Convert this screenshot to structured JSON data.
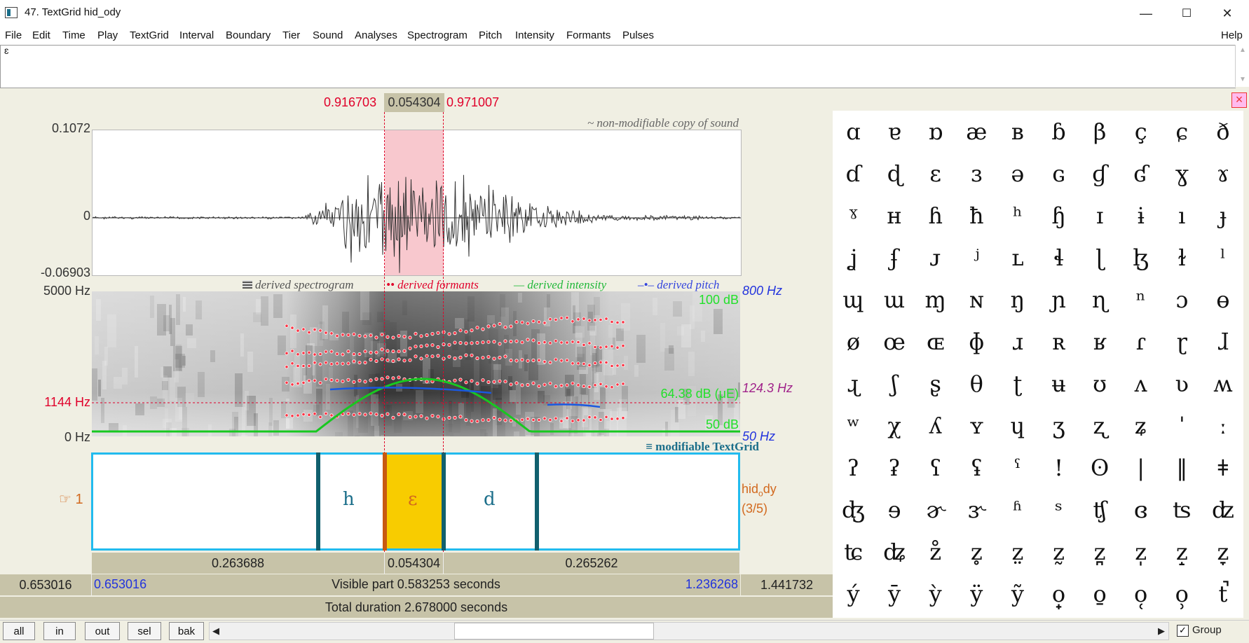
{
  "window": {
    "title": "47. TextGrid hid_ody",
    "minimize": "—",
    "maximize": "☐",
    "close": "✕"
  },
  "menu": [
    "File",
    "Edit",
    "Time",
    "Play",
    "TextGrid",
    "Interval",
    "Boundary",
    "Tier",
    "Sound",
    "Analyses",
    "Spectrogram",
    "Pitch",
    "Intensity",
    "Formants",
    "Pulses"
  ],
  "menu_help": "Help",
  "text_field": {
    "value": "ɛ"
  },
  "selection": {
    "start": "0.916703",
    "duration": "0.054304",
    "end": "0.971007"
  },
  "wave": {
    "ymax": "0.1072",
    "yzero": "0",
    "ymin": "-0.06903",
    "caption": "~ non-modifiable copy of sound"
  },
  "legend": {
    "spectrogram": "derived spectrogram",
    "formants": "derived formants",
    "intensity": "derived intensity",
    "pitch": "derived pitch"
  },
  "spectrogram": {
    "top_hz": "5000 Hz",
    "cursor_hz": "1144 Hz",
    "zero_hz": "0 Hz",
    "pitch_top": "800 Hz",
    "pitch_cursor": "124.3 Hz",
    "pitch_bottom": "50 Hz",
    "db_top": "100 dB",
    "db_cursor": "64.38 dB (μE)",
    "db_bottom": "50 dB"
  },
  "textgrid": {
    "caption": "modifiable TextGrid",
    "tier_number": "1",
    "tier_name": "hid",
    "tier_name_sub": "o",
    "tier_name_rest": "dy",
    "tier_count": "(3/5)",
    "intervals": [
      {
        "label": ""
      },
      {
        "label": "h"
      },
      {
        "label": "ɛ"
      },
      {
        "label": "d"
      },
      {
        "label": ""
      }
    ],
    "durations": [
      "0.263688",
      "0.054304",
      "0.265262"
    ]
  },
  "time": {
    "window_start": "0.653016",
    "visible_start": "0.653016",
    "visible_text": "Visible part 0.583253 seconds",
    "visible_end": "1.236268",
    "window_end": "1.441732",
    "total": "Total duration 2.678000 seconds"
  },
  "buttons": {
    "all": "all",
    "in": "in",
    "out": "out",
    "sel": "sel",
    "bak": "bak",
    "group": "Group"
  },
  "ipa_symbols": [
    "ɑ",
    "ɐ",
    "ɒ",
    "æ",
    "ʙ",
    "ɓ",
    "β",
    "ç",
    "ɕ",
    "ð",
    "ɗ",
    "ɖ",
    "ɛ",
    "ɜ",
    "ə",
    "ɢ",
    "ɠ",
    "ʛ",
    "ɣ",
    "ɤ",
    "ˠ",
    "ʜ",
    "ɦ",
    "ħ",
    "ʰ",
    "ɧ",
    "ɪ",
    "ɨ",
    "ı",
    "ɟ",
    "ʝ",
    "ʄ",
    "ᴊ",
    "ʲ",
    "ʟ",
    "ɬ",
    "ɭ",
    "ɮ",
    "ɫ",
    "ˡ",
    "ɰ",
    "ɯ",
    "ɱ",
    "ɴ",
    "ŋ",
    "ɲ",
    "ɳ",
    "ⁿ",
    "ɔ",
    "ɵ",
    "ø",
    "œ",
    "ɶ",
    "ɸ",
    "ɹ",
    "ʀ",
    "ʁ",
    "ɾ",
    "ɽ",
    "ɺ",
    "ɻ",
    "ʃ",
    "ʂ",
    "θ",
    "ʈ",
    "ʉ",
    "ʊ",
    "ʌ",
    "ʋ",
    "ʍ",
    "ʷ",
    "χ",
    "ʎ",
    "ʏ",
    "ɥ",
    "ʒ",
    "ʐ",
    "ʑ",
    "ˈ",
    "ː",
    "ʔ",
    "ʡ",
    "ʕ",
    "ʢ",
    "ˤ",
    "!",
    "ʘ",
    "|",
    "‖",
    "ǂ",
    "ʤ",
    "ɘ",
    "ɚ",
    "ɝ",
    "ʱ",
    "ˢ",
    "ʧ",
    "ɞ",
    "ʦ",
    "ʣ",
    "ʨ",
    "ʥ",
    "z̊",
    "z̥",
    "z̤",
    "z̰",
    "z̪",
    "z̩",
    "z̝",
    "z̞",
    "ý",
    "ȳ",
    "ỳ",
    "ÿ",
    "ỹ",
    "o̟",
    "o̱",
    "o̜",
    "o̹",
    "t̚"
  ]
}
